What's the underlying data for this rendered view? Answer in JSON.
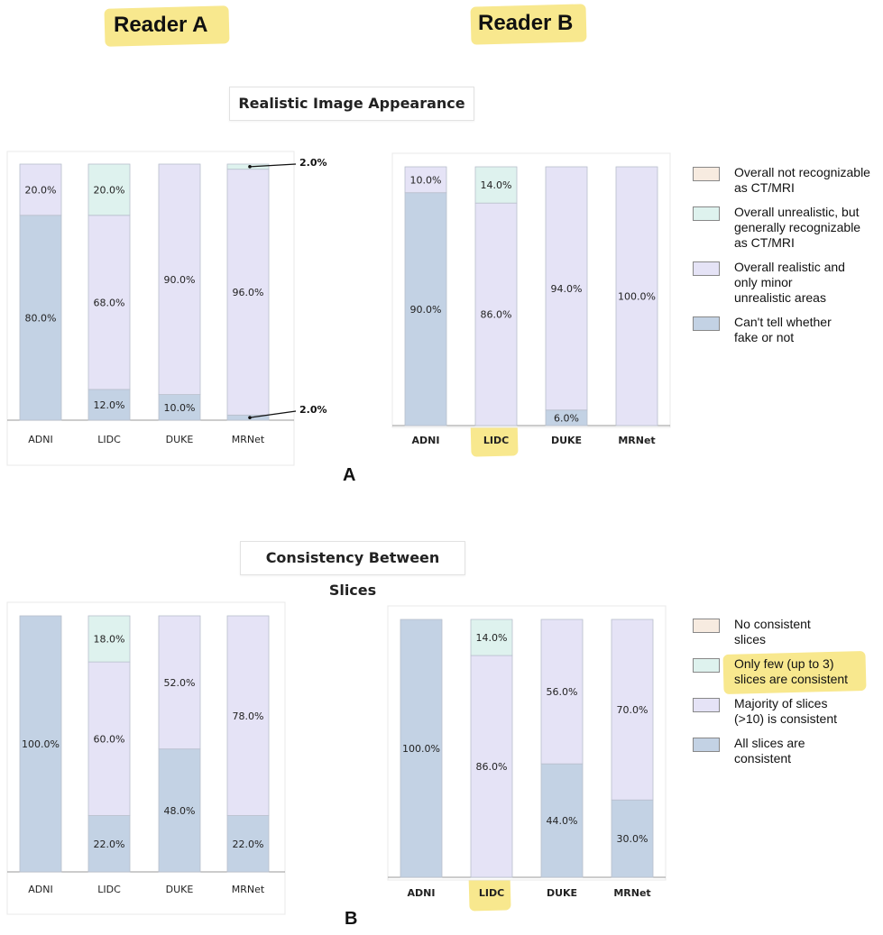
{
  "headers": {
    "reader_a": "Reader A",
    "reader_b": "Reader B"
  },
  "section_a": {
    "title": "Realistic Image Appearance",
    "letter": "A"
  },
  "section_b": {
    "title": "Consistency Between Slices",
    "letter": "B"
  },
  "colors": {
    "cat1": "#f7ebe0",
    "cat2": "#def2ee",
    "cat3": "#e5e3f6",
    "cat4": "#c3d2e4",
    "highlight": "#f7e47a"
  },
  "legend_a": [
    {
      "label": "Overall not recognizable\nas CT/MRI",
      "color": "#f7ebe0"
    },
    {
      "label": "Overall unrealistic, but\ngenerally recognizable\nas CT/MRI",
      "color": "#def2ee"
    },
    {
      "label": "Overall realistic and\nonly minor\nunrealistic areas",
      "color": "#e5e3f6"
    },
    {
      "label": "Can't tell whether\nfake or not",
      "color": "#c3d2e4"
    }
  ],
  "legend_b": [
    {
      "label": "No consistent\nslices",
      "color": "#f7ebe0"
    },
    {
      "label": "Only few (up to 3)\nslices are consistent",
      "color": "#def2ee"
    },
    {
      "label": "Majority of slices\n(>10) is consistent",
      "color": "#e5e3f6"
    },
    {
      "label": "All slices are\nconsistent",
      "color": "#c3d2e4"
    }
  ],
  "chart_data": [
    {
      "type": "bar",
      "stacked": true,
      "panel": "A",
      "reader": "Reader A",
      "categories": [
        "ADNI",
        "LIDC",
        "DUKE",
        "MRNet"
      ],
      "series": [
        {
          "name": "Can't tell whether fake or not",
          "values": [
            80,
            12,
            10,
            2
          ],
          "labels": [
            "80.0%",
            "12.0%",
            "10.0%",
            "2.0%"
          ]
        },
        {
          "name": "Overall realistic and only minor unrealistic areas",
          "values": [
            20,
            68,
            90,
            96
          ],
          "labels": [
            "20.0%",
            "68.0%",
            "90.0%",
            "96.0%"
          ]
        },
        {
          "name": "Overall unrealistic, but generally recognizable as CT/MRI",
          "values": [
            0,
            20,
            0,
            2
          ],
          "labels": [
            "",
            "20.0%",
            "",
            "2.0%"
          ]
        },
        {
          "name": "Overall not recognizable as CT/MRI",
          "values": [
            0,
            0,
            0,
            0
          ],
          "labels": [
            "",
            "",
            "",
            ""
          ]
        }
      ],
      "ylim": [
        0,
        100
      ]
    },
    {
      "type": "bar",
      "stacked": true,
      "panel": "A",
      "reader": "Reader B",
      "categories": [
        "ADNI",
        "LIDC",
        "DUKE",
        "MRNet"
      ],
      "series": [
        {
          "name": "Can't tell whether fake or not",
          "values": [
            90,
            0,
            6,
            0
          ],
          "labels": [
            "90.0%",
            "",
            "6.0%",
            ""
          ]
        },
        {
          "name": "Overall realistic and only minor unrealistic areas",
          "values": [
            10,
            86,
            94,
            100
          ],
          "labels": [
            "10.0%",
            "86.0%",
            "94.0%",
            "100.0%"
          ]
        },
        {
          "name": "Overall unrealistic, but generally recognizable as CT/MRI",
          "values": [
            0,
            14,
            0,
            0
          ],
          "labels": [
            "",
            "14.0%",
            "",
            ""
          ]
        },
        {
          "name": "Overall not recognizable as CT/MRI",
          "values": [
            0,
            0,
            0,
            0
          ],
          "labels": [
            "",
            "",
            "",
            ""
          ]
        }
      ],
      "ylim": [
        0,
        100
      ]
    },
    {
      "type": "bar",
      "stacked": true,
      "panel": "B",
      "reader": "Reader A",
      "categories": [
        "ADNI",
        "LIDC",
        "DUKE",
        "MRNet"
      ],
      "series": [
        {
          "name": "All slices are consistent",
          "values": [
            100,
            22,
            48,
            22
          ],
          "labels": [
            "100.0%",
            "22.0%",
            "48.0%",
            "22.0%"
          ]
        },
        {
          "name": "Majority of slices (>10) is consistent",
          "values": [
            0,
            60,
            52,
            78
          ],
          "labels": [
            "",
            "60.0%",
            "52.0%",
            "78.0%"
          ]
        },
        {
          "name": "Only few (up to 3) slices are consistent",
          "values": [
            0,
            18,
            0,
            0
          ],
          "labels": [
            "",
            "18.0%",
            "",
            ""
          ]
        },
        {
          "name": "No consistent slices",
          "values": [
            0,
            0,
            0,
            0
          ],
          "labels": [
            "",
            "",
            "",
            ""
          ]
        }
      ],
      "ylim": [
        0,
        100
      ]
    },
    {
      "type": "bar",
      "stacked": true,
      "panel": "B",
      "reader": "Reader B",
      "categories": [
        "ADNI",
        "LIDC",
        "DUKE",
        "MRNet"
      ],
      "series": [
        {
          "name": "All slices are consistent",
          "values": [
            100,
            0,
            44,
            30
          ],
          "labels": [
            "100.0%",
            "",
            "44.0%",
            "30.0%"
          ]
        },
        {
          "name": "Majority of slices (>10) is consistent",
          "values": [
            0,
            86,
            56,
            70
          ],
          "labels": [
            "",
            "86.0%",
            "56.0%",
            "70.0%"
          ]
        },
        {
          "name": "Only few (up to 3) slices are consistent",
          "values": [
            0,
            14,
            0,
            0
          ],
          "labels": [
            "",
            "14.0%",
            "",
            ""
          ]
        },
        {
          "name": "No consistent slices",
          "values": [
            0,
            0,
            0,
            0
          ],
          "labels": [
            "",
            "",
            "",
            ""
          ]
        }
      ],
      "ylim": [
        0,
        100
      ]
    }
  ]
}
